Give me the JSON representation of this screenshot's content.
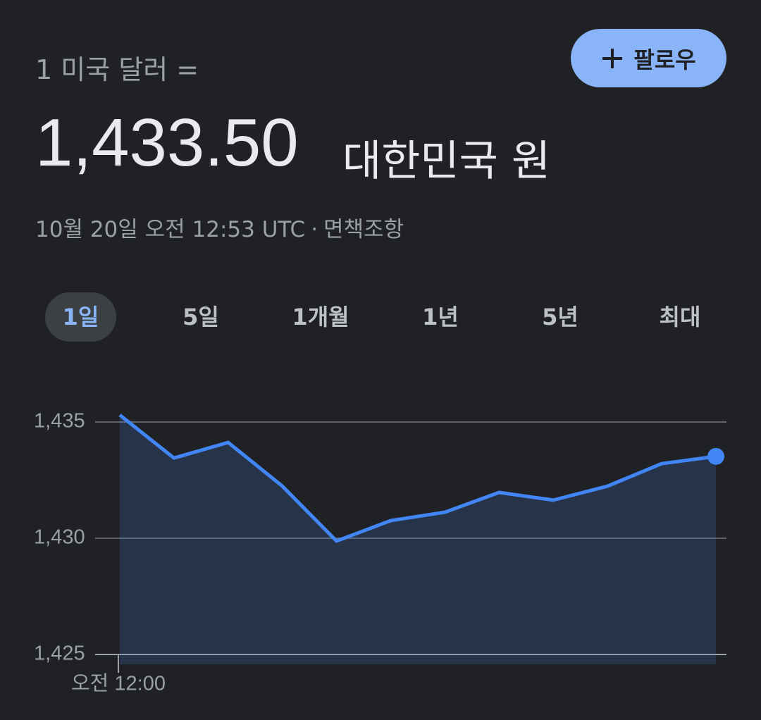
{
  "header": {
    "base": "1 미국 달러 =",
    "rate": "1,433.50",
    "currency": "대한민국 원",
    "timestamp": "10월 20일 오전 12:53 UTC",
    "separator": "·",
    "disclaimer": "면책조항",
    "follow": "팔로우"
  },
  "tabs": {
    "items": [
      "1일",
      "5일",
      "1개월",
      "1년",
      "5년",
      "최대"
    ],
    "selected": 0
  },
  "chart_data": {
    "type": "line",
    "categories": [
      "오전 12:00",
      null,
      null,
      null,
      null,
      null,
      null,
      null,
      null,
      null,
      null,
      null
    ],
    "series": [
      {
        "color": "#4285f4",
        "values": [
          1435.3,
          1433.45,
          1434.12,
          1432.24,
          1429.88,
          1430.76,
          1431.12,
          1431.97,
          1431.64,
          1432.24,
          1433.21,
          1433.52
        ]
      }
    ],
    "ylim": [
      1425,
      1436
    ],
    "yticks": [
      {
        "value": 1425,
        "label": "1,425"
      },
      {
        "value": 1430,
        "label": "1,430"
      },
      {
        "value": 1435,
        "label": "1,435"
      }
    ],
    "grid": true
  }
}
